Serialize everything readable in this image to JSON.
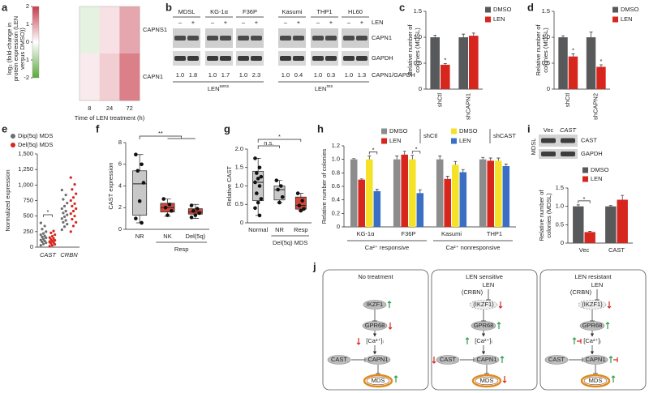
{
  "chart_data": [
    {
      "panel": "a",
      "type": "heatmap",
      "ylabel": [
        "log₂ (fold-change in",
        "protein expression (LEN",
        "versus DMSO))"
      ],
      "xlabel": "Time of LEN treatment (h)",
      "categories": [
        "8",
        "24",
        "72"
      ],
      "rows": [
        "CAPNS1",
        "CAPN1"
      ],
      "values": [
        [
          -0.3,
          0.3,
          0.9
        ],
        [
          0.2,
          0.5,
          1.3
        ]
      ],
      "colorbar_lim": [
        -2,
        2
      ],
      "colorbar_ticks": [
        2,
        1,
        0,
        -1,
        -2
      ],
      "colors": [
        "#5aa83a",
        "#ffffff",
        "#c73a4a"
      ]
    },
    {
      "panel": "c",
      "type": "bar",
      "ylabel": [
        "Relative number of",
        "colonies (MDSL)"
      ],
      "categories": [
        "shCtl",
        "shCAPN1"
      ],
      "series": [
        {
          "name": "DMSO",
          "color": "#58595b",
          "values": [
            1.0,
            1.0
          ],
          "errors": [
            0.04,
            0.06
          ]
        },
        {
          "name": "LEN",
          "color": "#d7261e",
          "values": [
            0.47,
            1.03
          ],
          "errors": [
            0.02,
            0.05
          ]
        }
      ],
      "ylim": [
        0,
        1.5
      ],
      "yticks": [
        0,
        0.5,
        {
          "value": 1,
          "label": "1.0"
        },
        1.5
      ],
      "annotations": [
        "*"
      ]
    },
    {
      "panel": "d",
      "type": "bar",
      "ylabel": [
        "Relative number of",
        "colonies (MDSL)"
      ],
      "categories": [
        "shCtl",
        "shCAPN2"
      ],
      "series": [
        {
          "name": "DMSO",
          "color": "#58595b",
          "values": [
            1.0,
            1.0
          ],
          "errors": [
            0.03,
            0.1
          ]
        },
        {
          "name": "LEN",
          "color": "#d7261e",
          "values": [
            0.63,
            0.43
          ],
          "errors": [
            0.05,
            0.04
          ]
        }
      ],
      "ylim": [
        0,
        1.5
      ],
      "yticks": [
        0,
        0.5,
        {
          "value": 1,
          "label": "1.0"
        },
        1.5
      ],
      "annotations": [
        "*",
        "*"
      ]
    },
    {
      "panel": "e",
      "type": "strip",
      "ylabel": "Normalized expression",
      "categories": [
        "CAST",
        "CRBN"
      ],
      "series": [
        {
          "name": "Dip(5q) MDS",
          "color": "#6d6e70",
          "values": [
            [
              30,
              50,
              70,
              85,
              100,
              115,
              130,
              150,
              165,
              180,
              200,
              220,
              250,
              290,
              340,
              390
            ],
            [
              280,
              330,
              370,
              400,
              430,
              460,
              490,
              520,
              550,
              580,
              620,
              660,
              710,
              770,
              840,
              920
            ]
          ]
        },
        {
          "name": "Del(5q) MDS",
          "color": "#d7261e",
          "values": [
            [
              15,
              30,
              45,
              60,
              75,
              90,
              100,
              110,
              125,
              140,
              155,
              175,
              200,
              230,
              260,
              80
            ],
            [
              250,
              340,
              400,
              450,
              500,
              540,
              580,
              620,
              660,
              700,
              750,
              800,
              860,
              930,
              1010,
              1120
            ]
          ]
        }
      ],
      "ylim": [
        0,
        1500
      ],
      "yticks": [
        0,
        250,
        500,
        750,
        {
          "value": 1000,
          "label": "1,000"
        },
        {
          "value": 1250,
          "label": "1,250"
        },
        {
          "value": 1500,
          "label": "1,500"
        }
      ],
      "annotations": [
        "*"
      ]
    },
    {
      "panel": "f",
      "type": "box",
      "ylabel": "CAST expression",
      "categories": [
        "NR",
        "NK",
        "Del(5q)"
      ],
      "group_label": "Resp",
      "boxes": [
        {
          "color": "#c8c8c8",
          "min": 0.6,
          "q1": 1.3,
          "median": 4.2,
          "q3": 5.4,
          "max": 6.9,
          "points": [
            6.9,
            6.0,
            5.4,
            4.3,
            2.6,
            1.0,
            0.6
          ]
        },
        {
          "color": "#d2463a",
          "min": 1.2,
          "q1": 1.6,
          "median": 2.0,
          "q3": 2.4,
          "max": 2.8,
          "points": [
            2.8,
            2.3,
            2.0,
            1.7,
            1.3
          ]
        },
        {
          "color": "#d2463a",
          "min": 1.0,
          "q1": 1.4,
          "median": 1.6,
          "q3": 1.9,
          "max": 2.3,
          "points": [
            2.2,
            1.9,
            1.7,
            1.5,
            1.3,
            1.1
          ]
        }
      ],
      "ylim": [
        0,
        8
      ],
      "yticks": [
        0,
        2,
        4,
        6,
        8
      ],
      "annotations": [
        "**"
      ]
    },
    {
      "panel": "g",
      "type": "box",
      "ylabel": "Relative CAST",
      "categories": [
        "Normal",
        "NR",
        "Resp"
      ],
      "group_label": "Del(5q) MDS",
      "boxes": [
        {
          "color": "#c8c8c8",
          "min": 0.2,
          "q1": 0.6,
          "median": 1.1,
          "q3": 1.4,
          "max": 1.75,
          "points": [
            1.75,
            1.5,
            1.35,
            1.25,
            1.2,
            1.1,
            1.0,
            0.8,
            0.65,
            0.55,
            0.4,
            0.2
          ]
        },
        {
          "color": "#c8c8c8",
          "min": 0.55,
          "q1": 0.62,
          "median": 0.9,
          "q3": 1.0,
          "max": 1.15,
          "points": [
            1.15,
            1.0,
            0.9,
            0.7,
            0.55
          ]
        },
        {
          "color": "#d2463a",
          "min": 0.33,
          "q1": 0.37,
          "median": 0.47,
          "q3": 0.7,
          "max": 0.8,
          "points": [
            0.8,
            0.6,
            0.47,
            0.38,
            0.33
          ]
        }
      ],
      "ylim": [
        0,
        2
      ],
      "yticks": [
        0,
        0.5,
        {
          "value": 1,
          "label": "1.0"
        },
        1.5,
        {
          "value": 2,
          "label": "2.0"
        }
      ],
      "annotations": [
        "n.s.",
        "*"
      ]
    },
    {
      "panel": "h",
      "type": "bar",
      "ylabel": "Relative number of colonies",
      "categories": [
        "KG-1α",
        "F36P",
        "Kasumi",
        "THP1"
      ],
      "series": [
        {
          "name": "DMSO",
          "color": "#8c8c8c",
          "values": [
            1.0,
            1.0,
            1.0,
            1.0
          ],
          "errors": [
            0.01,
            0.05,
            0.05,
            0.03
          ]
        },
        {
          "name": "LEN",
          "color": "#d7261e",
          "values": [
            0.7,
            1.07,
            0.71,
            0.98
          ],
          "errors": [
            0.01,
            0.05,
            0.04,
            0.04
          ]
        },
        {
          "name": "DMSO",
          "color": "#f5e228",
          "values": [
            1.0,
            1.0,
            0.92,
            0.98
          ],
          "errors": [
            0.05,
            0.06,
            0.05,
            0.04
          ]
        },
        {
          "name": "LEN",
          "color": "#3a6fc4",
          "values": [
            0.53,
            0.5,
            0.81,
            0.9
          ],
          "errors": [
            0.03,
            0.05,
            0.04,
            0.03
          ]
        }
      ],
      "legend_groups": [
        "shCtl",
        "shCAST"
      ],
      "category_groups": [
        "Ca²⁺ responsive",
        "Ca²⁺ nonresponsive"
      ],
      "ylim": [
        0,
        1.2
      ],
      "yticks": [
        0,
        0.2,
        0.4,
        0.6,
        0.8,
        {
          "value": 1,
          "label": "1.0"
        },
        1.2
      ],
      "annotations": [
        "*",
        "*"
      ]
    },
    {
      "panel": "i",
      "type": "bar",
      "ylabel": [
        "Relative number of",
        "colonies (MDSL)"
      ],
      "categories": [
        "Vec",
        "CAST"
      ],
      "series": [
        {
          "name": "DMSO",
          "color": "#58595b",
          "values": [
            1.0,
            1.0
          ],
          "errors": [
            0.04,
            0.02
          ]
        },
        {
          "name": "LEN",
          "color": "#d7261e",
          "values": [
            0.3,
            1.18
          ],
          "errors": [
            0.02,
            0.12
          ]
        }
      ],
      "ylim": [
        0,
        1.5
      ],
      "yticks": [
        0,
        0.5,
        {
          "value": 1,
          "label": "1.0"
        },
        1.5
      ],
      "annotations": [
        "*"
      ]
    }
  ],
  "blots": [
    {
      "panel": "b",
      "cell_lines": [
        "MDSL",
        "KG-1α",
        "F36P",
        "Kasumi",
        "THP1",
        "HL60"
      ],
      "signs": [
        "–",
        "+"
      ],
      "lanes_label": "LEN",
      "proteins": [
        "CAPN1",
        "GAPDH"
      ],
      "ratios": [
        [
          "1.0",
          "1.8"
        ],
        [
          "1.0",
          "1.7"
        ],
        [
          "1.0",
          "2.3"
        ],
        [
          "1.0",
          "0.4"
        ],
        [
          "1.0",
          "0.3"
        ],
        [
          "1.0",
          "1.3"
        ]
      ],
      "ratio_label": "CAPN1/GAPDH",
      "groups": [
        {
          "label": "LEN",
          "sup": "sens"
        },
        {
          "label": "LEN",
          "sup": "res"
        }
      ]
    },
    {
      "lanes": [
        "Vec",
        "CAST"
      ],
      "proteins": [
        "CAST",
        "GAPDH"
      ],
      "cell_line": "MDSL"
    }
  ],
  "diagram": {
    "panel": "j",
    "titles": [
      "No treatment",
      "LEN sensitive",
      "LEN resistant"
    ],
    "labels": {
      "len": "LEN",
      "crbn": "(CRBN)",
      "ikzf1": "IKZF1",
      "ikzf1_degraded": "(IKZF1)",
      "gpr68": "GPR68",
      "ca": "[Ca²⁺]ᵢ",
      "cast": "CAST",
      "capn1": "CAPN1",
      "mds": "MDS"
    }
  }
}
